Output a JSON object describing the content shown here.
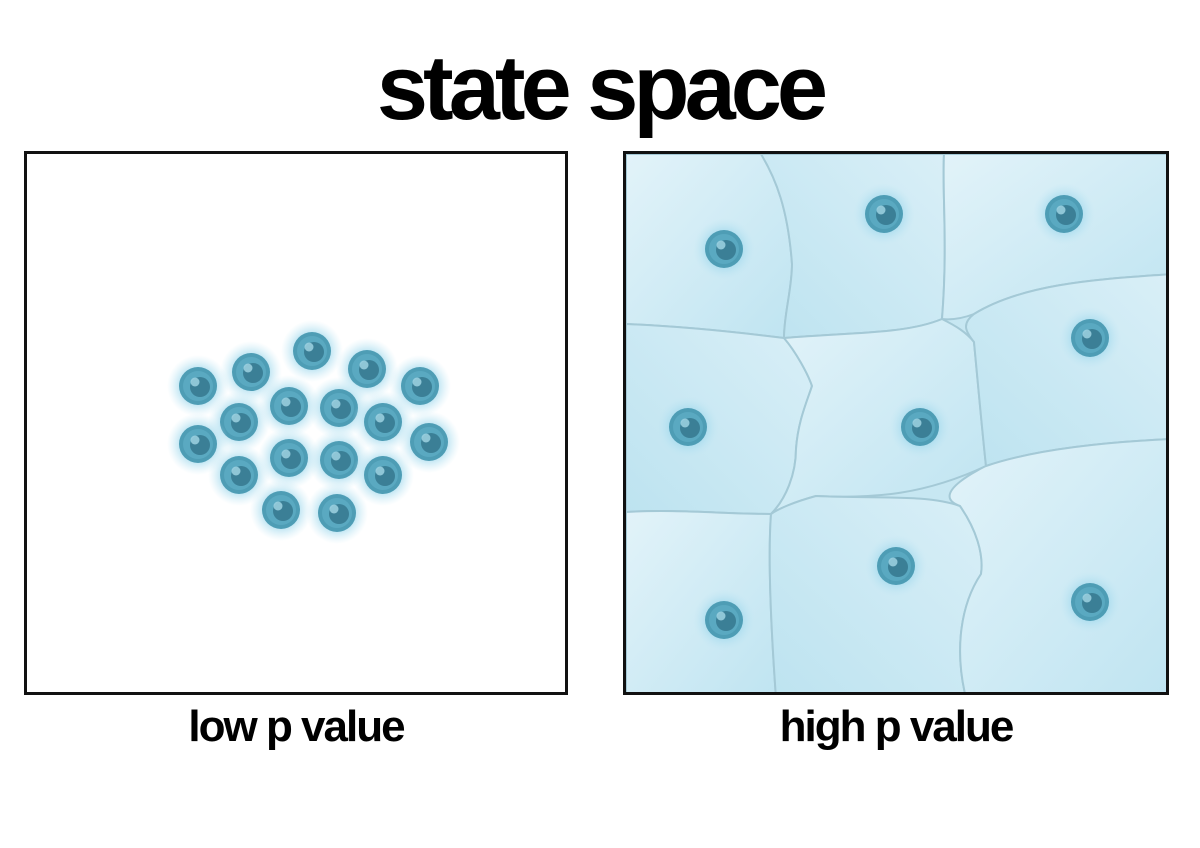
{
  "title": "state space",
  "panels": {
    "left": {
      "caption": "low p value"
    },
    "right": {
      "caption": "high p value"
    }
  },
  "colors": {
    "particle_glow": "#8ed1e8",
    "particle_body": "#4e9db5",
    "particle_core": "#3b7f96",
    "cell_fill": "#c7e7f2",
    "cell_edge": "#a4c9d6",
    "frame": "#111111"
  },
  "icons": {
    "particle": "particle-icon",
    "cell": "cell-region"
  }
}
